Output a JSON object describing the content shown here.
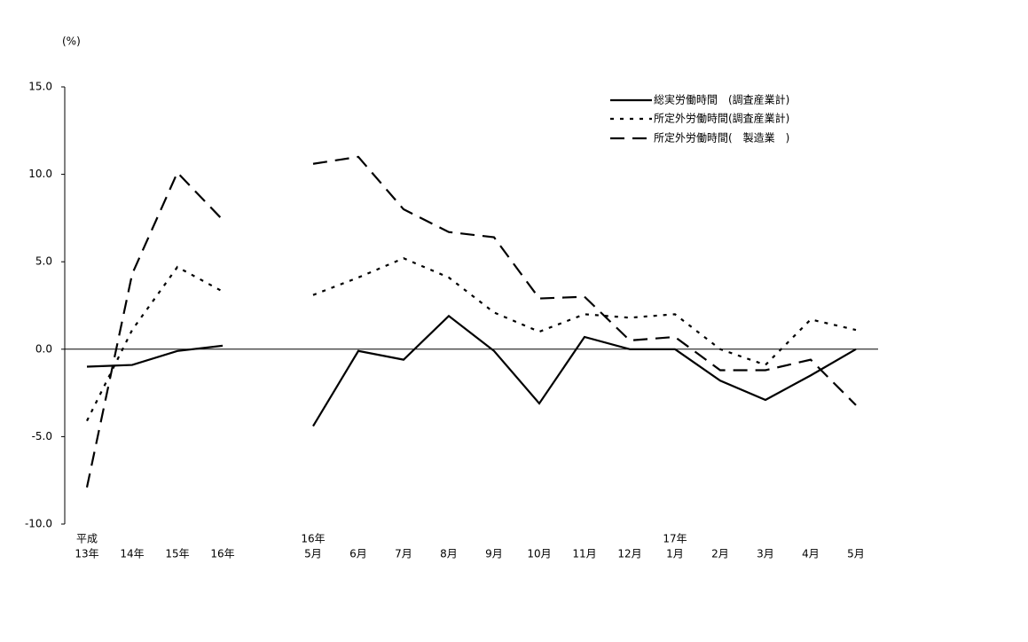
{
  "chart_data": {
    "type": "line",
    "y_unit": "(%)",
    "categories": [
      [
        "平成",
        "13年"
      ],
      [
        "14年"
      ],
      [
        "15年"
      ],
      [
        "16年"
      ],
      null,
      [
        "16年",
        "5月"
      ],
      [
        "6月"
      ],
      [
        "7月"
      ],
      [
        "8月"
      ],
      [
        "9月"
      ],
      [
        "10月"
      ],
      [
        "11月"
      ],
      [
        "12月"
      ],
      [
        "17年",
        "1月"
      ],
      [
        "2月"
      ],
      [
        "3月"
      ],
      [
        "4月"
      ],
      [
        "5月"
      ]
    ],
    "series": [
      {
        "name": "総実労働時間　(調査産業計)",
        "color": "#000000",
        "line_style": "solid",
        "values": [
          -1.0,
          -0.9,
          -0.1,
          0.2,
          null,
          -4.4,
          -0.1,
          -0.6,
          1.9,
          -0.1,
          -3.1,
          0.7,
          0.0,
          0.0,
          -1.8,
          -2.9,
          -1.5,
          0.0
        ]
      },
      {
        "name": "所定外労働時間(調査産業計)",
        "color": "#000000",
        "line_style": "dotted",
        "values": [
          -4.1,
          1.1,
          4.7,
          3.3,
          null,
          3.1,
          4.1,
          5.2,
          4.1,
          2.1,
          1.0,
          2.0,
          1.8,
          2.0,
          0.0,
          -0.9,
          1.7,
          1.1
        ]
      },
      {
        "name": "所定外労働時間(　製造業　)",
        "color": "#000000",
        "line_style": "dashed",
        "values": [
          -7.9,
          4.3,
          10.1,
          7.4,
          null,
          10.6,
          11.0,
          8.0,
          6.7,
          6.4,
          2.9,
          3.0,
          0.5,
          0.7,
          -1.2,
          -1.2,
          -0.6,
          -3.2
        ]
      }
    ],
    "ylim": [
      -10,
      15
    ],
    "yticks": [
      {
        "value": 15,
        "label": "15.0"
      },
      {
        "value": 10,
        "label": "10.0"
      },
      {
        "value": 5,
        "label": "5.0"
      },
      {
        "value": 0,
        "label": "0.0"
      },
      {
        "value": -5,
        "label": "-5.0"
      },
      {
        "value": -10,
        "label": "-10.0"
      }
    ],
    "legend": "top-right",
    "grid": false
  }
}
